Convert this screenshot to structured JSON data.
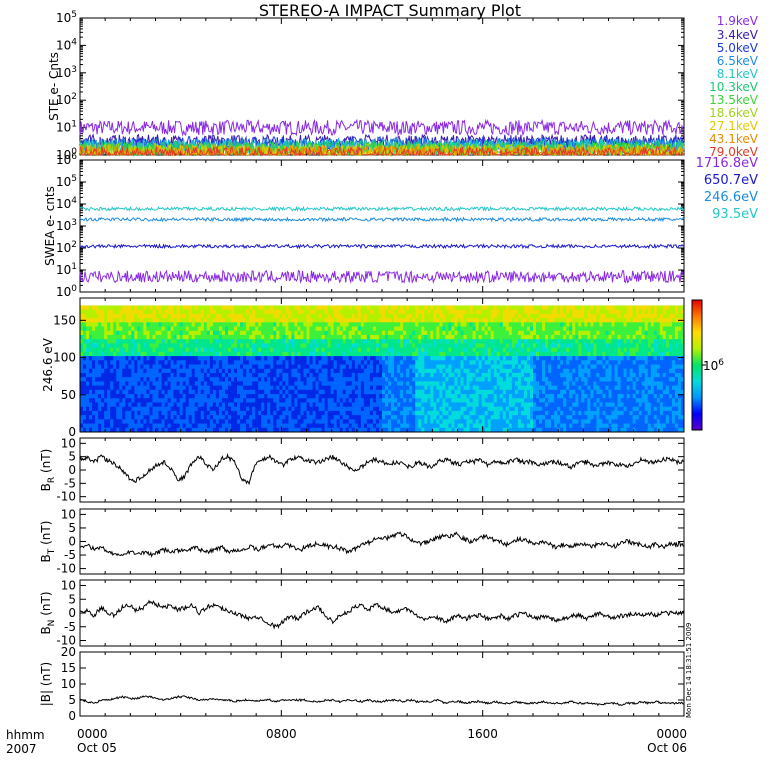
{
  "title": "STEREO-A IMPACT Summary Plot",
  "footer": {
    "time_label": "hhmm",
    "year_label": "2007"
  },
  "stamp": "Mon Dec 14 18:31:51 2009",
  "chart_data": [
    {
      "type": "line",
      "panel": "STE",
      "ylabel": "STE e- Cnts",
      "yscale": "log",
      "ylim": [
        1,
        100000
      ],
      "yticks": [
        "10^0",
        "10^1",
        "10^2",
        "10^3",
        "10^4",
        "10^5"
      ],
      "series": [
        {
          "name": "1.9keV",
          "color": "#8a2be2",
          "level": 10
        },
        {
          "name": "3.4keV",
          "color": "#3c1aa8",
          "level": 3
        },
        {
          "name": "5.0keV",
          "color": "#1e3ce0",
          "level": 2.5
        },
        {
          "name": "6.5keV",
          "color": "#1e8ce0",
          "level": 2.2
        },
        {
          "name": "8.1keV",
          "color": "#22c8c8",
          "level": 2
        },
        {
          "name": "10.3keV",
          "color": "#1ec878",
          "level": 1.8
        },
        {
          "name": "13.5keV",
          "color": "#3cd23c",
          "level": 1.6
        },
        {
          "name": "18.6keV",
          "color": "#a0d21e",
          "level": 1.4
        },
        {
          "name": "27.1keV",
          "color": "#e6c800",
          "level": 1.3
        },
        {
          "name": "43.1keV",
          "color": "#e68c00",
          "level": 1.2
        },
        {
          "name": "79.0keV",
          "color": "#dc3c28",
          "level": 1.1
        }
      ]
    },
    {
      "type": "line",
      "panel": "SWEA",
      "ylabel": "SWEA e- cnts",
      "yscale": "log",
      "ylim": [
        1,
        1000000
      ],
      "yticks": [
        "10^0",
        "10^1",
        "10^2",
        "10^3",
        "10^4",
        "10^5",
        "10^6"
      ],
      "series": [
        {
          "name": "1716.8eV",
          "color": "#8a2be2",
          "level": 5
        },
        {
          "name": "650.7eV",
          "color": "#1a1acd",
          "level": 120
        },
        {
          "name": "246.6eV",
          "color": "#1e8ce0",
          "level": 2000
        },
        {
          "name": "93.5eV",
          "color": "#22c8c8",
          "level": 6000
        }
      ]
    },
    {
      "type": "heatmap",
      "panel": "PAD",
      "ylabel": "246.6 eV",
      "ylim": [
        0,
        180
      ],
      "yticks": [
        0,
        50,
        100,
        150
      ],
      "colorbar_label": "10^6"
    },
    {
      "type": "line",
      "panel": "BR",
      "ylabel_main": "B",
      "ylabel_sub": "R",
      "ylabel_unit": "(nT)",
      "ylim": [
        -12,
        12
      ],
      "yticks": [
        -10,
        -5,
        0,
        5,
        10
      ],
      "values": [
        4,
        4.5,
        3,
        5,
        3.5,
        2,
        0,
        -3,
        -4,
        -2,
        0,
        2,
        3,
        0,
        -4,
        -2,
        3,
        5,
        2,
        0,
        4,
        5,
        3,
        -3,
        -5,
        2,
        4,
        5,
        3,
        2,
        4,
        5,
        4,
        3,
        3,
        4,
        5,
        3,
        2,
        -1,
        1,
        3,
        4,
        3,
        2,
        3,
        2,
        1,
        3,
        2,
        1,
        3,
        4,
        3,
        2,
        3,
        3,
        4,
        2,
        3,
        3,
        3,
        4,
        3,
        3,
        2,
        2,
        3,
        3,
        2,
        1,
        3,
        3,
        2,
        2,
        3,
        2,
        2,
        1,
        3,
        4,
        3,
        3,
        4,
        4,
        3,
        3
      ]
    },
    {
      "type": "line",
      "panel": "BT",
      "ylabel_main": "B",
      "ylabel_sub": "T",
      "ylabel_unit": "(nT)",
      "ylim": [
        -12,
        12
      ],
      "yticks": [
        -10,
        -5,
        0,
        5,
        10
      ],
      "values": [
        -2,
        -1,
        -3,
        -2,
        -4,
        -5,
        -5,
        -4,
        -4,
        -4,
        -5,
        -4,
        -3,
        -4,
        -3,
        -4,
        -2,
        -3,
        -4,
        -3,
        -2,
        -4,
        -3,
        -3,
        -2,
        -3,
        -2,
        -1,
        -2,
        -1,
        -2,
        -3,
        -2,
        -1,
        -1,
        -2,
        -2,
        -3,
        -4,
        -2,
        -1,
        0,
        2,
        1,
        2,
        3,
        2,
        0,
        -1,
        0,
        1,
        2,
        2,
        3,
        1,
        0,
        1,
        2,
        1,
        0,
        -1,
        0,
        1,
        0,
        -1,
        0,
        -1,
        -2,
        -1,
        -2,
        -1,
        -1,
        -2,
        -1,
        -1,
        -2,
        -1,
        0,
        -1,
        -1,
        -2,
        -1,
        -2,
        -1,
        -1,
        -1
      ]
    },
    {
      "type": "line",
      "panel": "BN",
      "ylabel_main": "B",
      "ylabel_sub": "N",
      "ylabel_unit": "(nT)",
      "ylim": [
        -12,
        12
      ],
      "yticks": [
        -10,
        -5,
        0,
        5,
        10
      ],
      "values": [
        0,
        1,
        -1,
        2,
        0,
        -1,
        2,
        3,
        1,
        2,
        4,
        3,
        2,
        3,
        1,
        2,
        3,
        0,
        2,
        3,
        2,
        1,
        0,
        -1,
        -2,
        -1,
        -2,
        -4,
        -5,
        -3,
        -1,
        -2,
        0,
        1,
        2,
        -1,
        -3,
        -1,
        0,
        2,
        3,
        1,
        3,
        2,
        1,
        0,
        2,
        1,
        -1,
        -2,
        -1,
        -2,
        -3,
        -2,
        -1,
        -2,
        -1,
        -1,
        -2,
        -2,
        -1,
        -2,
        -1,
        0,
        -1,
        -2,
        -1,
        -2,
        -3,
        -2,
        -1,
        -1,
        -2,
        -1,
        0,
        -1,
        -2,
        -1,
        -1,
        0,
        -1,
        0,
        -1,
        0,
        0,
        0,
        0
      ]
    },
    {
      "type": "line",
      "panel": "Bmag",
      "ylabel_main": "|B|",
      "ylabel_unit": "(nT)",
      "ylim": [
        0,
        20
      ],
      "yticks": [
        0,
        5,
        10,
        15,
        20
      ],
      "values": [
        5,
        4.5,
        4,
        5,
        5,
        5.5,
        6,
        5.5,
        5.5,
        6,
        6,
        5.5,
        5,
        5.5,
        6,
        6,
        5.5,
        5,
        5,
        5.5,
        5,
        5,
        4.5,
        5,
        5,
        4.5,
        5,
        5,
        4.5,
        5,
        5,
        5,
        5,
        4.5,
        4.5,
        5,
        5,
        4.5,
        5,
        5,
        4.5,
        5,
        4.5,
        4.5,
        5,
        5,
        4.5,
        5,
        4.5,
        4.5,
        4.5,
        5,
        4,
        4.5,
        4.5,
        4,
        4.5,
        4.5,
        4,
        4.5,
        4,
        4,
        4.5,
        4,
        4,
        4,
        4.5,
        4,
        4,
        4,
        4.5,
        4,
        4,
        4,
        3.5,
        4,
        4,
        3.5,
        4,
        4,
        4.5,
        4,
        4.5,
        4,
        4,
        4,
        4
      ]
    },
    {
      "type": "axis",
      "panel": "time",
      "ticks": [
        "0000",
        "0800",
        "1600",
        "0000"
      ],
      "dates": [
        "Oct 05",
        "",
        "",
        "Oct 06"
      ]
    }
  ]
}
